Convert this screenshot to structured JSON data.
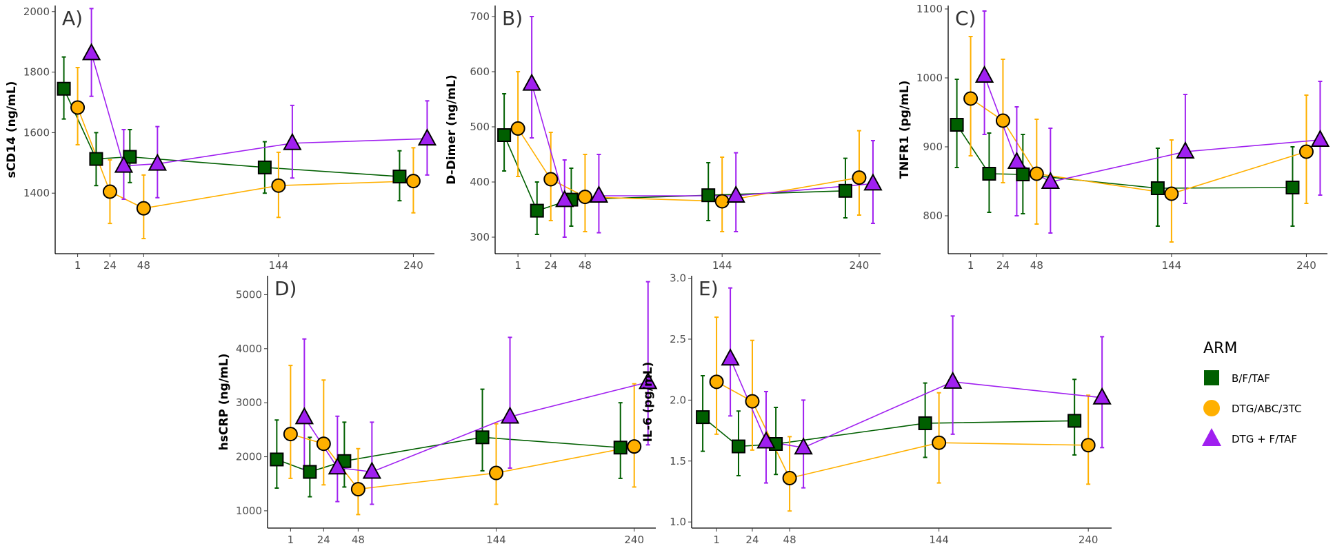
{
  "colors": {
    "B/F/TAF": "#005f00",
    "DTG/ABC/3TC": "#ffb000",
    "DTG + F/TAF": "#a020f0"
  },
  "legend": {
    "title": "ARM",
    "items": [
      {
        "label": "B/F/TAF",
        "shape": "square"
      },
      {
        "label": "DTG/ABC/3TC",
        "shape": "circle"
      },
      {
        "label": "DTG + F/TAF",
        "shape": "triangle"
      }
    ]
  },
  "chart_data": [
    {
      "type": "line",
      "panel": "A)",
      "ylabel": "sCD14 (ng/mL)",
      "x_ticks": [
        1,
        24,
        48,
        144,
        240
      ],
      "xlim": [
        -15,
        255
      ],
      "ylim": [
        1200,
        2020
      ],
      "y_ticks": [
        1400,
        1600,
        1800,
        2000
      ],
      "series": [
        {
          "name": "B/F/TAF",
          "x": [
            1,
            24,
            48,
            144,
            240
          ],
          "y": [
            1745,
            1513,
            1520,
            1485,
            1455
          ],
          "lower": [
            1645,
            1425,
            1435,
            1400,
            1375
          ],
          "upper": [
            1850,
            1600,
            1610,
            1570,
            1540
          ]
        },
        {
          "name": "DTG/ABC/3TC",
          "x": [
            1,
            24,
            48,
            144,
            240
          ],
          "y": [
            1683,
            1405,
            1350,
            1425,
            1440
          ],
          "lower": [
            1560,
            1300,
            1250,
            1320,
            1335
          ],
          "upper": [
            1815,
            1510,
            1460,
            1535,
            1550
          ]
        },
        {
          "name": "DTG + F/TAF",
          "x": [
            1,
            24,
            48,
            144,
            240
          ],
          "y": [
            1862,
            1490,
            1497,
            1565,
            1580
          ],
          "lower": [
            1720,
            1380,
            1385,
            1450,
            1460
          ],
          "upper": [
            2010,
            1610,
            1620,
            1690,
            1705
          ]
        }
      ]
    },
    {
      "type": "line",
      "panel": "B)",
      "ylabel": "D-Dimer (ng/mL)",
      "x_ticks": [
        1,
        24,
        48,
        144,
        240
      ],
      "xlim": [
        -15,
        255
      ],
      "ylim": [
        270,
        720
      ],
      "y_ticks": [
        300,
        400,
        500,
        600,
        700
      ],
      "series": [
        {
          "name": "B/F/TAF",
          "x": [
            1,
            24,
            48,
            144,
            240
          ],
          "y": [
            485,
            348,
            368,
            376,
            384
          ],
          "lower": [
            420,
            305,
            320,
            330,
            335
          ],
          "upper": [
            560,
            400,
            425,
            435,
            443
          ]
        },
        {
          "name": "DTG/ABC/3TC",
          "x": [
            1,
            24,
            48,
            144,
            240
          ],
          "y": [
            497,
            405,
            373,
            365,
            408
          ],
          "lower": [
            410,
            330,
            310,
            310,
            340
          ],
          "upper": [
            600,
            490,
            450,
            445,
            493
          ]
        },
        {
          "name": "DTG + F/TAF",
          "x": [
            1,
            24,
            48,
            144,
            240
          ],
          "y": [
            578,
            367,
            375,
            375,
            397
          ],
          "lower": [
            480,
            300,
            308,
            310,
            325
          ],
          "upper": [
            700,
            440,
            450,
            453,
            475
          ]
        }
      ]
    },
    {
      "type": "line",
      "panel": "C)",
      "ylabel": "TNFR1 (pg/mL)",
      "x_ticks": [
        1,
        24,
        48,
        144,
        240
      ],
      "xlim": [
        -15,
        255
      ],
      "ylim": [
        745,
        1105
      ],
      "y_ticks": [
        800,
        900,
        1000,
        1100
      ],
      "series": [
        {
          "name": "B/F/TAF",
          "x": [
            1,
            24,
            48,
            144,
            240
          ],
          "y": [
            932,
            861,
            860,
            840,
            841
          ],
          "lower": [
            870,
            805,
            803,
            785,
            785
          ],
          "upper": [
            998,
            920,
            918,
            898,
            900
          ]
        },
        {
          "name": "DTG/ABC/3TC",
          "x": [
            1,
            24,
            48,
            144,
            240
          ],
          "y": [
            970,
            938,
            861,
            832,
            893
          ],
          "lower": [
            887,
            848,
            788,
            762,
            818
          ],
          "upper": [
            1060,
            1027,
            940,
            910,
            975
          ]
        },
        {
          "name": "DTG + F/TAF",
          "x": [
            1,
            24,
            48,
            144,
            240
          ],
          "y": [
            1003,
            878,
            849,
            893,
            910
          ],
          "lower": [
            918,
            800,
            775,
            818,
            830
          ],
          "upper": [
            1097,
            958,
            927,
            976,
            995
          ]
        }
      ]
    },
    {
      "type": "line",
      "panel": "D)",
      "ylabel": "hsCRP (ng/mL)",
      "x_ticks": [
        1,
        24,
        48,
        144,
        240
      ],
      "xlim": [
        -15,
        255
      ],
      "ylim": [
        680,
        5350
      ],
      "y_ticks": [
        1000,
        2000,
        3000,
        4000,
        5000
      ],
      "series": [
        {
          "name": "B/F/TAF",
          "x": [
            1,
            24,
            48,
            144,
            240
          ],
          "y": [
            1950,
            1720,
            1920,
            2360,
            2170
          ],
          "lower": [
            1420,
            1260,
            1440,
            1740,
            1600
          ],
          "upper": [
            2680,
            2360,
            2640,
            3250,
            3000
          ]
        },
        {
          "name": "DTG/ABC/3TC",
          "x": [
            1,
            24,
            48,
            144,
            240
          ],
          "y": [
            2420,
            2240,
            1400,
            1700,
            2190
          ],
          "lower": [
            1600,
            1480,
            930,
            1120,
            1440
          ],
          "upper": [
            3690,
            3420,
            2150,
            2610,
            3350
          ]
        },
        {
          "name": "DTG + F/TAF",
          "x": [
            1,
            24,
            48,
            144,
            240
          ],
          "y": [
            2730,
            1800,
            1720,
            2740,
            3380
          ],
          "lower": [
            1780,
            1170,
            1120,
            1790,
            2220
          ],
          "upper": [
            4180,
            2750,
            2640,
            4210,
            5240
          ]
        }
      ]
    },
    {
      "type": "line",
      "panel": "E)",
      "ylabel": "IL-6 (pg/mL)",
      "x_ticks": [
        1,
        24,
        48,
        144,
        240
      ],
      "xlim": [
        -15,
        255
      ],
      "ylim": [
        0.95,
        3.02
      ],
      "y_ticks": [
        1.0,
        1.5,
        2.0,
        2.5,
        3.0
      ],
      "series": [
        {
          "name": "B/F/TAF",
          "x": [
            1,
            24,
            48,
            144,
            240
          ],
          "y": [
            1.86,
            1.62,
            1.64,
            1.81,
            1.83
          ],
          "lower": [
            1.58,
            1.38,
            1.39,
            1.53,
            1.55
          ],
          "upper": [
            2.2,
            1.91,
            1.94,
            2.14,
            2.17
          ]
        },
        {
          "name": "DTG/ABC/3TC",
          "x": [
            1,
            24,
            48,
            144,
            240
          ],
          "y": [
            2.15,
            1.99,
            1.36,
            1.65,
            1.63
          ],
          "lower": [
            1.72,
            1.59,
            1.09,
            1.32,
            1.31
          ],
          "upper": [
            2.68,
            2.49,
            1.7,
            2.06,
            2.04
          ]
        },
        {
          "name": "DTG + F/TAF",
          "x": [
            1,
            24,
            48,
            144,
            240
          ],
          "y": [
            2.34,
            1.66,
            1.61,
            2.15,
            2.02
          ],
          "lower": [
            1.87,
            1.32,
            1.28,
            1.72,
            1.61
          ],
          "upper": [
            2.92,
            2.07,
            2.0,
            2.69,
            2.52
          ]
        }
      ]
    }
  ]
}
